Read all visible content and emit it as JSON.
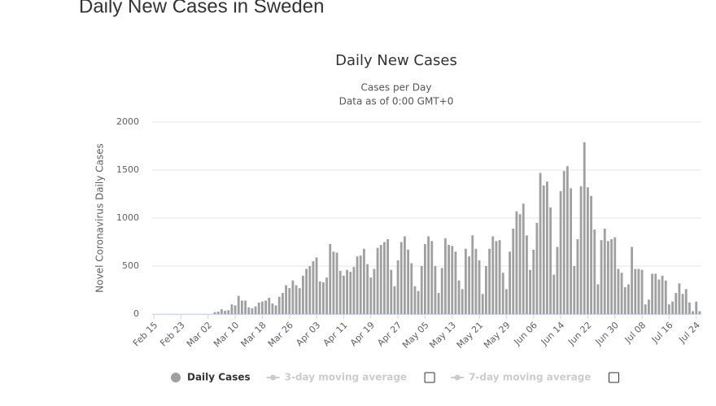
{
  "page_title": "Daily New Cases in Sweden",
  "chart_data": {
    "type": "bar",
    "title": "Daily New Cases",
    "subtitle": [
      "Cases per Day",
      "Data as of 0:00 GMT+0"
    ],
    "ylabel": "Novel Coronavirus Daily Cases",
    "categories": [
      "Feb 15",
      null,
      null,
      null,
      null,
      null,
      null,
      null,
      "Feb 23",
      null,
      null,
      null,
      null,
      null,
      null,
      null,
      "Mar 02",
      null,
      null,
      null,
      null,
      null,
      null,
      null,
      "Mar 10",
      null,
      null,
      null,
      null,
      null,
      null,
      null,
      "Mar 18",
      null,
      null,
      null,
      null,
      null,
      null,
      null,
      "Mar 26",
      null,
      null,
      null,
      null,
      null,
      null,
      null,
      "Apr 03",
      null,
      null,
      null,
      null,
      null,
      null,
      null,
      "Apr 11",
      null,
      null,
      null,
      null,
      null,
      null,
      null,
      "Apr 19",
      null,
      null,
      null,
      null,
      null,
      null,
      null,
      "Apr 27",
      null,
      null,
      null,
      null,
      null,
      null,
      null,
      "May 05",
      null,
      null,
      null,
      null,
      null,
      null,
      null,
      "May 13",
      null,
      null,
      null,
      null,
      null,
      null,
      null,
      "May 21",
      null,
      null,
      null,
      null,
      null,
      null,
      null,
      "May 29",
      null,
      null,
      null,
      null,
      null,
      null,
      null,
      "Jun 06",
      null,
      null,
      null,
      null,
      null,
      null,
      null,
      "Jun 14",
      null,
      null,
      null,
      null,
      null,
      null,
      null,
      "Jun 22",
      null,
      null,
      null,
      null,
      null,
      null,
      null,
      "Jun 30",
      null,
      null,
      null,
      null,
      null,
      null,
      null,
      "Jul 08",
      null,
      null,
      null,
      null,
      null,
      null,
      null,
      "Jul 16",
      null,
      null,
      null,
      null,
      null,
      null,
      null,
      "Jul 24",
      null
    ],
    "series": [
      {
        "name": "Daily Cases",
        "color": "#a0a0a0",
        "values": [
          0,
          0,
          0,
          0,
          0,
          0,
          0,
          0,
          0,
          0,
          0,
          0,
          0,
          0,
          0,
          0,
          0,
          0,
          20,
          25,
          50,
          35,
          40,
          100,
          90,
          190,
          140,
          140,
          70,
          60,
          80,
          120,
          130,
          140,
          170,
          110,
          90,
          180,
          220,
          300,
          270,
          350,
          300,
          270,
          400,
          470,
          500,
          550,
          590,
          340,
          330,
          380,
          730,
          650,
          640,
          450,
          400,
          460,
          440,
          490,
          600,
          610,
          680,
          520,
          380,
          470,
          690,
          720,
          750,
          780,
          460,
          290,
          560,
          750,
          810,
          670,
          530,
          290,
          240,
          500,
          730,
          810,
          760,
          500,
          220,
          480,
          790,
          720,
          710,
          650,
          350,
          260,
          680,
          600,
          820,
          680,
          560,
          210,
          500,
          680,
          810,
          760,
          770,
          430,
          260,
          650,
          890,
          1070,
          1040,
          1150,
          820,
          460,
          670,
          950,
          1470,
          1340,
          1380,
          1110,
          410,
          700,
          1280,
          1490,
          1540,
          1310,
          500,
          780,
          1330,
          1790,
          1320,
          1230,
          880,
          310,
          770,
          890,
          760,
          780,
          800,
          470,
          430,
          280,
          310,
          700,
          470,
          470,
          460,
          100,
          150,
          420,
          420,
          360,
          400,
          350,
          100,
          130,
          220,
          320,
          210,
          260,
          120,
          30,
          130,
          30
        ]
      }
    ],
    "moving_averages": [
      "3-day moving average",
      "7-day moving average"
    ],
    "ylim": [
      0,
      2000
    ],
    "yticks": [
      0,
      500,
      1000,
      1500,
      2000
    ],
    "grid": true
  }
}
